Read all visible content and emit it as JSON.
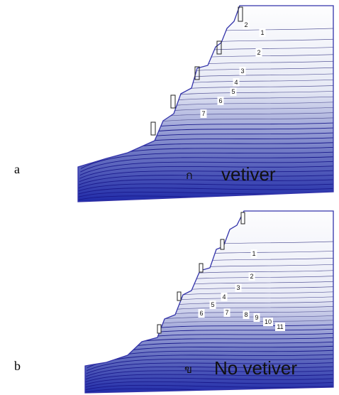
{
  "panels": [
    {
      "letter": "a",
      "thai_letter": "ก",
      "caption": "vetiver",
      "contour_labels": [
        "1",
        "2",
        "2",
        "3",
        "4",
        "5",
        "6",
        "7"
      ]
    },
    {
      "letter": "b",
      "thai_letter": "ข",
      "caption": "No vetiver",
      "contour_labels": [
        "1",
        "2",
        "3",
        "4",
        "5",
        "6",
        "7",
        "8",
        "9",
        "10",
        "11"
      ]
    }
  ],
  "colors": {
    "outline": "#3333aa",
    "contour_dark": "#1a1a8c",
    "contour_light": "#5a5a9a"
  }
}
